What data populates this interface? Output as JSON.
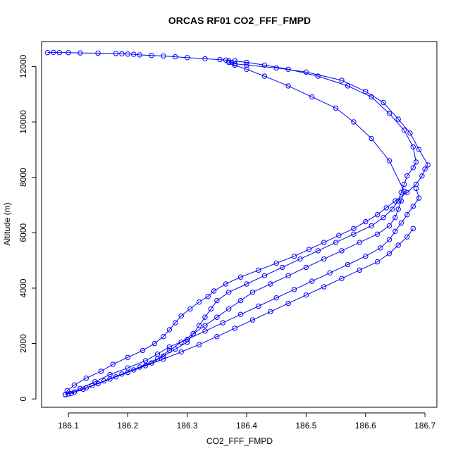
{
  "chart_data": {
    "type": "line",
    "title": "ORCAS RF01 CO2_FFF_FMPD",
    "xlabel": "CO2_FFF_FMPD",
    "ylabel": "Altitude (m)",
    "xlim": [
      186.055,
      186.72
    ],
    "ylim": [
      -300,
      12900
    ],
    "xticks": [
      186.1,
      186.2,
      186.3,
      186.4,
      186.5,
      186.6,
      186.7
    ],
    "xtick_labels": [
      "186.1",
      "186.2",
      "186.3",
      "186.4",
      "186.5",
      "186.6",
      "186.7"
    ],
    "yticks": [
      0,
      2000,
      4000,
      6000,
      8000,
      10000,
      12000
    ],
    "ytick_labels": [
      "0",
      "2000",
      "4000",
      "6000",
      "8000",
      "10000",
      "12000"
    ],
    "grid": false,
    "legend": "none",
    "color": "#0000ff",
    "marker": "open-circle",
    "series": [
      {
        "x": [
          186.095,
          186.098,
          186.11,
          186.13,
          186.155,
          186.175,
          186.2,
          186.225,
          186.245,
          186.26,
          186.27,
          186.28,
          186.29,
          186.305,
          186.32,
          186.335,
          186.345,
          186.365,
          186.39,
          186.42,
          186.45,
          186.48,
          186.505,
          186.53,
          186.555,
          186.58,
          186.6,
          186.62,
          186.635,
          186.65,
          186.67,
          186.685,
          186.695,
          186.7,
          186.705,
          186.69,
          186.675,
          186.655,
          186.63,
          186.6,
          186.56,
          186.5,
          186.45,
          186.4,
          186.38,
          186.375,
          186.37,
          186.365,
          186.355,
          186.33,
          186.3,
          186.28,
          186.26,
          186.24,
          186.22,
          186.21,
          186.2,
          186.19,
          186.18,
          186.15,
          186.12,
          186.1,
          186.085,
          186.075,
          186.065
        ],
        "y": [
          150,
          300,
          500,
          750,
          1000,
          1250,
          1500,
          1750,
          2000,
          2250,
          2500,
          2750,
          3000,
          3250,
          3500,
          3700,
          3900,
          4150,
          4400,
          4650,
          4900,
          5150,
          5400,
          5650,
          5900,
          6150,
          6400,
          6650,
          6900,
          7150,
          7450,
          7750,
          8050,
          8300,
          8450,
          9000,
          9600,
          10100,
          10700,
          11100,
          11500,
          11800,
          11950,
          12050,
          12100,
          12150,
          12200,
          12230,
          12250,
          12280,
          12320,
          12350,
          12380,
          12400,
          12420,
          12440,
          12450,
          12460,
          12470,
          12480,
          12490,
          12500,
          12500,
          12510,
          12500
        ]
      },
      {
        "x": [
          186.105,
          186.125,
          186.15,
          186.18,
          186.21,
          186.24,
          186.26,
          186.28,
          186.3,
          186.31,
          186.32,
          186.33,
          186.34,
          186.35,
          186.37,
          186.4,
          186.43,
          186.46,
          186.49,
          186.52,
          186.55,
          186.58,
          186.61,
          186.63,
          186.645,
          186.655,
          186.66,
          186.665,
          186.67,
          186.68,
          186.685,
          186.68,
          186.665,
          186.64,
          186.61,
          186.57,
          186.52,
          186.47,
          186.43,
          186.4,
          186.38
        ],
        "y": [
          200,
          350,
          550,
          800,
          1050,
          1300,
          1550,
          1800,
          2050,
          2350,
          2650,
          2950,
          3250,
          3550,
          3850,
          4150,
          4450,
          4750,
          5050,
          5350,
          5650,
          5950,
          6250,
          6550,
          6850,
          7150,
          7450,
          7750,
          8050,
          8350,
          8550,
          9100,
          9700,
          10300,
          10900,
          11300,
          11650,
          11900,
          12050,
          12150,
          12200
        ]
      },
      {
        "x": [
          186.1,
          186.13,
          186.16,
          186.19,
          186.22,
          186.25,
          186.27,
          186.29,
          186.31,
          186.33,
          186.35,
          186.37,
          186.39,
          186.41,
          186.44,
          186.47,
          186.5,
          186.53,
          186.56,
          186.59,
          186.62,
          186.64,
          186.65,
          186.655,
          186.66,
          186.665,
          186.64,
          186.61,
          186.58,
          186.55,
          186.51,
          186.47,
          186.43,
          186.4,
          186.38,
          186.37
        ],
        "y": [
          180,
          400,
          650,
          900,
          1150,
          1450,
          1750,
          2050,
          2350,
          2650,
          2950,
          3250,
          3550,
          3850,
          4150,
          4450,
          4750,
          5050,
          5350,
          5650,
          5950,
          6250,
          6550,
          6850,
          7150,
          7500,
          8600,
          9400,
          10000,
          10500,
          10900,
          11300,
          11650,
          11900,
          12050,
          12150
        ]
      },
      {
        "x": [
          186.095,
          186.12,
          186.145,
          186.17,
          186.2,
          186.23,
          186.25,
          186.27,
          186.3,
          186.33,
          186.36,
          186.39,
          186.42,
          186.45,
          186.48,
          186.51,
          186.54,
          186.57,
          186.6,
          186.625,
          186.64,
          186.65,
          186.66,
          186.67,
          186.68,
          186.69,
          186.685
        ],
        "y": [
          160,
          380,
          620,
          880,
          1120,
          1380,
          1620,
          1880,
          2150,
          2450,
          2750,
          3050,
          3350,
          3650,
          3950,
          4250,
          4550,
          4850,
          5150,
          5450,
          5750,
          6050,
          6350,
          6650,
          6950,
          7250,
          7600
        ]
      },
      {
        "x": [
          186.11,
          186.14,
          186.17,
          186.2,
          186.23,
          186.26,
          186.29,
          186.32,
          186.35,
          186.38,
          186.41,
          186.44,
          186.47,
          186.5,
          186.53,
          186.56,
          186.59,
          186.62,
          186.64,
          186.655,
          186.67,
          186.68
        ],
        "y": [
          250,
          480,
          720,
          960,
          1200,
          1440,
          1700,
          1960,
          2250,
          2550,
          2850,
          3150,
          3450,
          3750,
          4050,
          4350,
          4650,
          4950,
          5250,
          5550,
          5850,
          6150
        ]
      }
    ]
  }
}
